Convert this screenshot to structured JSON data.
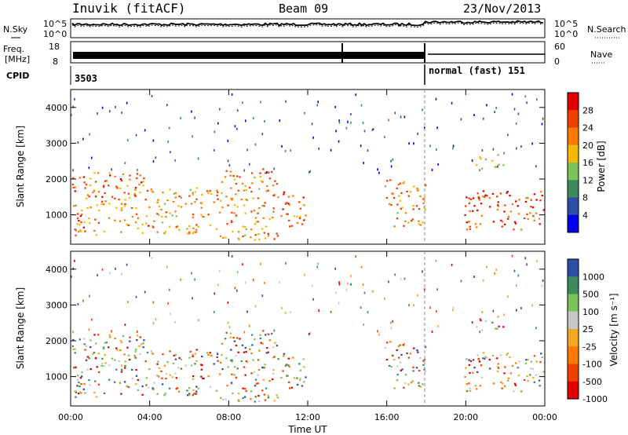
{
  "header": {
    "station": "Inuvik (fitACF)",
    "beam": "Beam 09",
    "date": "23/Nov/2013"
  },
  "params": {
    "nsky_label": "N.Sky",
    "nsearch_label": "N.Search",
    "noise_ticks": [
      "10^5",
      "10^0"
    ],
    "freq_label": "Freq.",
    "freq_unit": "[MHz]",
    "freq_ticks": [
      "18",
      "8"
    ],
    "nave_label": "Nave",
    "nave_ticks": [
      "60",
      "0"
    ],
    "cpid_label": "CPID",
    "cpid_value": "3503",
    "cpid_value2": "normal (fast) 151"
  },
  "colors": {
    "power_scale": [
      "#0000ee",
      "#2e4ea8",
      "#3d8a5e",
      "#7cc45a",
      "#f5b800",
      "#ff7a00",
      "#f04000",
      "#e00000"
    ],
    "velocity_scale": [
      "#e00000",
      "#f04000",
      "#ff7a00",
      "#f5a623",
      "#c8c8c8",
      "#7cc45a",
      "#3d8a5e",
      "#2e4ea8"
    ]
  },
  "chart_data": [
    {
      "type": "heatmap",
      "panel": "power",
      "ylabel": "Slant Range [km]",
      "ylim": [
        180,
        4500
      ],
      "y_ticks": [
        "1000",
        "2000",
        "3000",
        "4000"
      ],
      "xlim": [
        0,
        24
      ],
      "colorbar_label": "Power [dB]",
      "colorbar_ticks": [
        "4",
        "8",
        "12",
        "16",
        "20",
        "24",
        "28"
      ],
      "scatter_regions_hours_km": [
        {
          "t": [
            0.0,
            4.0
          ],
          "r": [
            450,
            2200
          ],
          "level": 0.75
        },
        {
          "t": [
            4.0,
            7.5
          ],
          "r": [
            500,
            1800
          ],
          "level": 0.65
        },
        {
          "t": [
            7.5,
            10.5
          ],
          "r": [
            300,
            2300
          ],
          "level": 0.7
        },
        {
          "t": [
            10.5,
            12.0
          ],
          "r": [
            700,
            1700
          ],
          "level": 0.8
        },
        {
          "t": [
            15.8,
            18.0
          ],
          "r": [
            700,
            2000
          ],
          "level": 0.7
        },
        {
          "t": [
            19.8,
            24.0
          ],
          "r": [
            600,
            1700
          ],
          "level": 0.85
        },
        {
          "t": [
            20.5,
            22.0
          ],
          "r": [
            2300,
            2700
          ],
          "level": 0.6
        }
      ]
    },
    {
      "type": "heatmap",
      "panel": "velocity",
      "ylabel": "Slant Range [km]",
      "xlabel": "Time UT",
      "ylim": [
        180,
        4500
      ],
      "y_ticks": [
        "1000",
        "2000",
        "3000",
        "4000"
      ],
      "xlim": [
        0,
        24
      ],
      "x_ticks": [
        "00:00",
        "04:00",
        "08:00",
        "12:00",
        "16:00",
        "20:00",
        "00:00"
      ],
      "colorbar_label": "Velocity [m s⁻¹]",
      "colorbar_ticks": [
        "1000",
        "500",
        "100",
        "25",
        "-25",
        "-100",
        "-500",
        "-1000"
      ]
    }
  ]
}
